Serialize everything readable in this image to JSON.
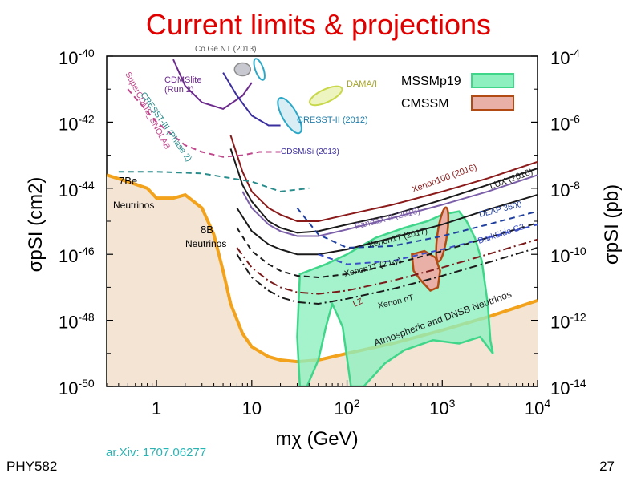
{
  "slide": {
    "title": "Current limits & projections",
    "footer_left": "PHY582",
    "footer_source": "ar.Xiv: 1707.06277",
    "page_number": "27"
  },
  "chart_data": {
    "type": "line",
    "title": "",
    "xlabel": "mχ (GeV)",
    "ylabel_left": "σpSI (cm2)",
    "ylabel_right": "σpSI (pb)",
    "xscale": "log",
    "yscale": "log",
    "xlim": [
      0.3,
      10000
    ],
    "ylim_cm2": [
      -50,
      -40
    ],
    "x_ticks": [
      {
        "value": 1,
        "label": "1"
      },
      {
        "value": 10,
        "label": "10"
      },
      {
        "value": 100,
        "label": "10",
        "exp": "2"
      },
      {
        "value": 1000,
        "label": "10",
        "exp": "3"
      },
      {
        "value": 10000,
        "label": "10",
        "exp": "4"
      }
    ],
    "y_ticks_left": [
      {
        "value": -40,
        "label": "10",
        "exp": "-40"
      },
      {
        "value": -42,
        "label": "10",
        "exp": "-42"
      },
      {
        "value": -44,
        "label": "10",
        "exp": "-44"
      },
      {
        "value": -46,
        "label": "10",
        "exp": "-46"
      },
      {
        "value": -48,
        "label": "10",
        "exp": "-48"
      },
      {
        "value": -50,
        "label": "10",
        "exp": "-50"
      }
    ],
    "y_ticks_right": [
      {
        "value": -40,
        "label": "10",
        "exp": "-4"
      },
      {
        "value": -42,
        "label": "10",
        "exp": "-6"
      },
      {
        "value": -44,
        "label": "10",
        "exp": "-8"
      },
      {
        "value": -46,
        "label": "10",
        "exp": "-10"
      },
      {
        "value": -48,
        "label": "10",
        "exp": "-12"
      },
      {
        "value": -50,
        "label": "10",
        "exp": "-14"
      }
    ],
    "legend": [
      {
        "name": "MSSMp19",
        "color": "#8ef0bf",
        "edge": "#3fd68a"
      },
      {
        "name": "CMSSM",
        "color": "#e8b0a6",
        "edge": "#b24a14"
      }
    ],
    "neutrino_floor": {
      "name": "Neutrino floor",
      "color": "#f2a21b",
      "fill": "#f3e4d4",
      "points": [
        [
          0.3,
          -43.6
        ],
        [
          0.5,
          -43.8
        ],
        [
          0.8,
          -44.0
        ],
        [
          1.0,
          -44.3
        ],
        [
          1.5,
          -44.3
        ],
        [
          2.0,
          -44.2
        ],
        [
          3.0,
          -44.6
        ],
        [
          4.0,
          -45.4
        ],
        [
          5.0,
          -46.5
        ],
        [
          6.0,
          -47.5
        ],
        [
          8.0,
          -48.4
        ],
        [
          10.0,
          -48.8
        ],
        [
          15.0,
          -49.1
        ],
        [
          20.0,
          -49.2
        ],
        [
          30.0,
          -49.25
        ],
        [
          50.0,
          -49.2
        ],
        [
          100.0,
          -49.0
        ],
        [
          300.0,
          -48.7
        ],
        [
          1000.0,
          -48.3
        ],
        [
          3000.0,
          -47.9
        ],
        [
          10000.0,
          -47.4
        ]
      ]
    },
    "series": [
      {
        "name": "Xenon100 (2016)",
        "color": "#8b1a1a",
        "dash": "solid",
        "points": [
          [
            6,
            -42.4
          ],
          [
            8,
            -43.5
          ],
          [
            10,
            -44.1
          ],
          [
            15,
            -44.6
          ],
          [
            20,
            -44.8
          ],
          [
            30,
            -45.0
          ],
          [
            50,
            -45.0
          ],
          [
            100,
            -44.8
          ],
          [
            300,
            -44.5
          ],
          [
            1000,
            -44.1
          ],
          [
            3000,
            -43.7
          ],
          [
            10000,
            -43.2
          ]
        ]
      },
      {
        "name": "LUX (2016)",
        "color": "#1a1a1a",
        "dash": "solid",
        "points": [
          [
            6,
            -42.8
          ],
          [
            8,
            -43.9
          ],
          [
            10,
            -44.4
          ],
          [
            15,
            -45.0
          ],
          [
            20,
            -45.2
          ],
          [
            30,
            -45.35
          ],
          [
            50,
            -45.3
          ],
          [
            100,
            -45.1
          ],
          [
            300,
            -44.8
          ],
          [
            1000,
            -44.35
          ],
          [
            3000,
            -43.9
          ],
          [
            10000,
            -43.4
          ]
        ]
      },
      {
        "name": "PandaX-II (2016)",
        "color": "#7b5fa8",
        "dash": "solid",
        "points": [
          [
            8,
            -44.1
          ],
          [
            10,
            -44.6
          ],
          [
            15,
            -45.1
          ],
          [
            20,
            -45.3
          ],
          [
            30,
            -45.45
          ],
          [
            50,
            -45.45
          ],
          [
            100,
            -45.25
          ],
          [
            300,
            -44.9
          ],
          [
            1000,
            -44.5
          ],
          [
            3000,
            -44.1
          ],
          [
            10000,
            -43.6
          ]
        ]
      },
      {
        "name": "Xenon1T (2017)",
        "color": "#1a1a1a",
        "dash": "solid",
        "points": [
          [
            7,
            -44.6
          ],
          [
            10,
            -45.3
          ],
          [
            15,
            -45.7
          ],
          [
            20,
            -45.85
          ],
          [
            30,
            -46.0
          ],
          [
            50,
            -46.0
          ],
          [
            100,
            -45.85
          ],
          [
            300,
            -45.5
          ],
          [
            1000,
            -45.1
          ],
          [
            3000,
            -44.65
          ],
          [
            10000,
            -44.2
          ]
        ]
      },
      {
        "name": "DEAP 3600",
        "color": "#1f3f9f",
        "dash": "dash",
        "points": [
          [
            30,
            -44.6
          ],
          [
            50,
            -45.4
          ],
          [
            100,
            -45.8
          ],
          [
            300,
            -45.75
          ],
          [
            1000,
            -45.45
          ],
          [
            3000,
            -45.1
          ],
          [
            10000,
            -44.7
          ]
        ]
      },
      {
        "name": "DarkSide G2",
        "color": "#3b4fc8",
        "dash": "dash",
        "points": [
          [
            50,
            -46.0
          ],
          [
            100,
            -46.3
          ],
          [
            300,
            -46.2
          ],
          [
            1000,
            -45.85
          ],
          [
            3000,
            -45.5
          ],
          [
            10000,
            -45.1
          ]
        ]
      },
      {
        "name": "Xenon1T (2 t-y)",
        "color": "#1a1a1a",
        "dash": "dash",
        "points": [
          [
            7,
            -45.2
          ],
          [
            10,
            -45.9
          ],
          [
            15,
            -46.3
          ],
          [
            20,
            -46.5
          ],
          [
            30,
            -46.65
          ],
          [
            50,
            -46.7
          ],
          [
            100,
            -46.6
          ],
          [
            300,
            -46.3
          ],
          [
            1000,
            -45.9
          ],
          [
            3000,
            -45.5
          ],
          [
            10000,
            -45.05
          ]
        ]
      },
      {
        "name": "LZ",
        "color": "#7a1a1a",
        "dash": "dashdot",
        "points": [
          [
            7,
            -45.8
          ],
          [
            10,
            -46.4
          ],
          [
            15,
            -46.8
          ],
          [
            20,
            -47.0
          ],
          [
            30,
            -47.15
          ],
          [
            50,
            -47.2
          ],
          [
            100,
            -47.1
          ],
          [
            300,
            -46.8
          ],
          [
            1000,
            -46.4
          ],
          [
            3000,
            -46.0
          ],
          [
            10000,
            -45.55
          ]
        ]
      },
      {
        "name": "Xenon nT",
        "color": "#1a1a1a",
        "dash": "dashdot",
        "points": [
          [
            7,
            -46.0
          ],
          [
            10,
            -46.7
          ],
          [
            15,
            -47.1
          ],
          [
            20,
            -47.3
          ],
          [
            30,
            -47.45
          ],
          [
            50,
            -47.5
          ],
          [
            100,
            -47.35
          ],
          [
            300,
            -47.05
          ],
          [
            1000,
            -46.65
          ],
          [
            3000,
            -46.25
          ],
          [
            10000,
            -45.8
          ]
        ]
      },
      {
        "name": "CDMSlite (Run 2)",
        "color": "#6b2a8c",
        "dash": "solid",
        "points": [
          [
            1.5,
            -40.1
          ],
          [
            2,
            -40.9
          ],
          [
            3,
            -41.4
          ],
          [
            5,
            -41.6
          ],
          [
            8,
            -41.2
          ],
          [
            10,
            -40.8
          ]
        ]
      },
      {
        "name": "SuperCDMS SNOLAB",
        "color": "#c0468c",
        "dash": "dash",
        "points": [
          [
            0.5,
            -41.0
          ],
          [
            1,
            -42.0
          ],
          [
            2,
            -42.7
          ],
          [
            3,
            -42.9
          ],
          [
            5,
            -43.05
          ],
          [
            8,
            -43.0
          ],
          [
            12,
            -42.9
          ],
          [
            20,
            -42.9
          ]
        ]
      },
      {
        "name": "CRESST-III (Phase 2)",
        "color": "#2b8c8c",
        "dash": "dash",
        "points": [
          [
            0.4,
            -43.5
          ],
          [
            1,
            -43.5
          ],
          [
            3,
            -43.55
          ],
          [
            10,
            -43.8
          ],
          [
            20,
            -44.1
          ],
          [
            40,
            -44.0
          ]
        ]
      },
      {
        "name": "CDSM/Si (2013)",
        "color": "#3b2f9f",
        "dash": "solid",
        "points": [
          [
            5,
            -40.5
          ],
          [
            7,
            -41.2
          ],
          [
            10,
            -41.8
          ],
          [
            15,
            -42.1
          ],
          [
            20,
            -42.1
          ]
        ]
      }
    ],
    "regions": [
      {
        "name": "DAMA/I",
        "color": "#c8d84a",
        "x": 60,
        "y": -41.2
      },
      {
        "name": "CRESST-II (2012)",
        "color": "#2ba8c8",
        "x": 25,
        "y": -41.9
      },
      {
        "name": "Co.Ge.NT (2013)",
        "color": "#8c8c8c",
        "x": 8,
        "y": -40.3
      }
    ],
    "annotations": [
      {
        "text": "Co.Ge.NT (2013)",
        "color": "#5a5a5a"
      },
      {
        "text": "CDMSlite",
        "color": "#6b2a8c"
      },
      {
        "text": "(Run 2)",
        "color": "#6b2a8c"
      },
      {
        "text": "DAMA/I",
        "color": "#a4a42a"
      },
      {
        "text": "CRESST-II (2012)",
        "color": "#1f7ca8"
      },
      {
        "text": "CDSM/Si (2013)",
        "color": "#3b2f9f"
      },
      {
        "text": "SuperCDMS_SNOLAB",
        "color": "#c0468c"
      },
      {
        "text": "CRESST-III (Phase 2)",
        "color": "#2b8c8c"
      },
      {
        "text": "7Be",
        "color": "#000000"
      },
      {
        "text": "Neutrinos",
        "color": "#000000"
      },
      {
        "text": "8B",
        "color": "#000000"
      },
      {
        "text": "Neutrinos",
        "color": "#000000"
      },
      {
        "text": "Xenon100 (2016)",
        "color": "#8b1a1a"
      },
      {
        "text": "LUX (2016)",
        "color": "#1a1a1a"
      },
      {
        "text": "PandaX-II (2016)",
        "color": "#7b5fa8"
      },
      {
        "text": "Xenon1T (2017)",
        "color": "#1a1a1a"
      },
      {
        "text": "DEAP 3600",
        "color": "#1f3f9f"
      },
      {
        "text": "DarkSide G2",
        "color": "#3b4fc8"
      },
      {
        "text": "Xenon1T (2 t-y)",
        "color": "#1a1a1a"
      },
      {
        "text": "LZ",
        "color": "#7a1a1a"
      },
      {
        "text": "Xenon nT",
        "color": "#1a1a1a"
      },
      {
        "text": "Atmospheric and DNSB Neutrinos",
        "color": "#1a1a1a"
      }
    ]
  }
}
